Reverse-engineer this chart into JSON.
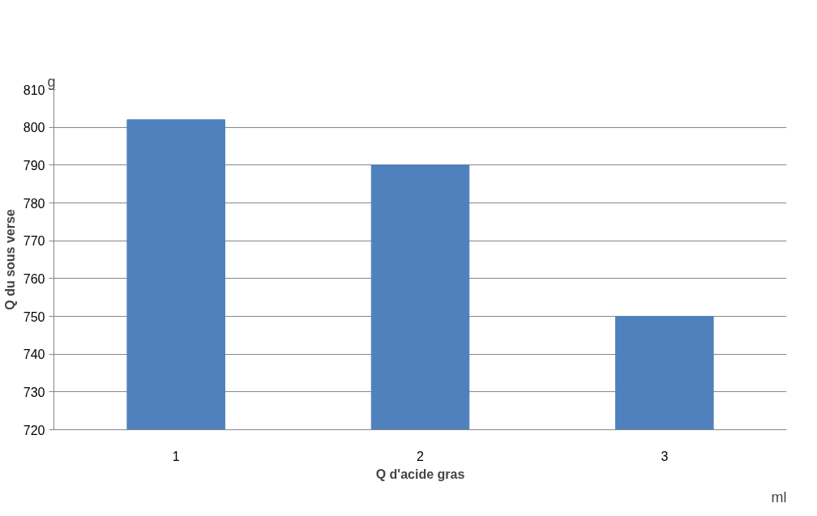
{
  "chart_data": {
    "type": "bar",
    "xlabel": "Q d'acide gras",
    "ylabel": "Q du sous verse",
    "categories": [
      "1",
      "2",
      "3"
    ],
    "values": [
      802,
      790,
      750
    ],
    "color": "#4f81bd",
    "ylim": [
      720,
      810
    ],
    "yticks": [
      720,
      730,
      740,
      750,
      760,
      770,
      780,
      790,
      800,
      810
    ],
    "grid": "y",
    "annotations": [
      "g",
      "ml"
    ]
  }
}
